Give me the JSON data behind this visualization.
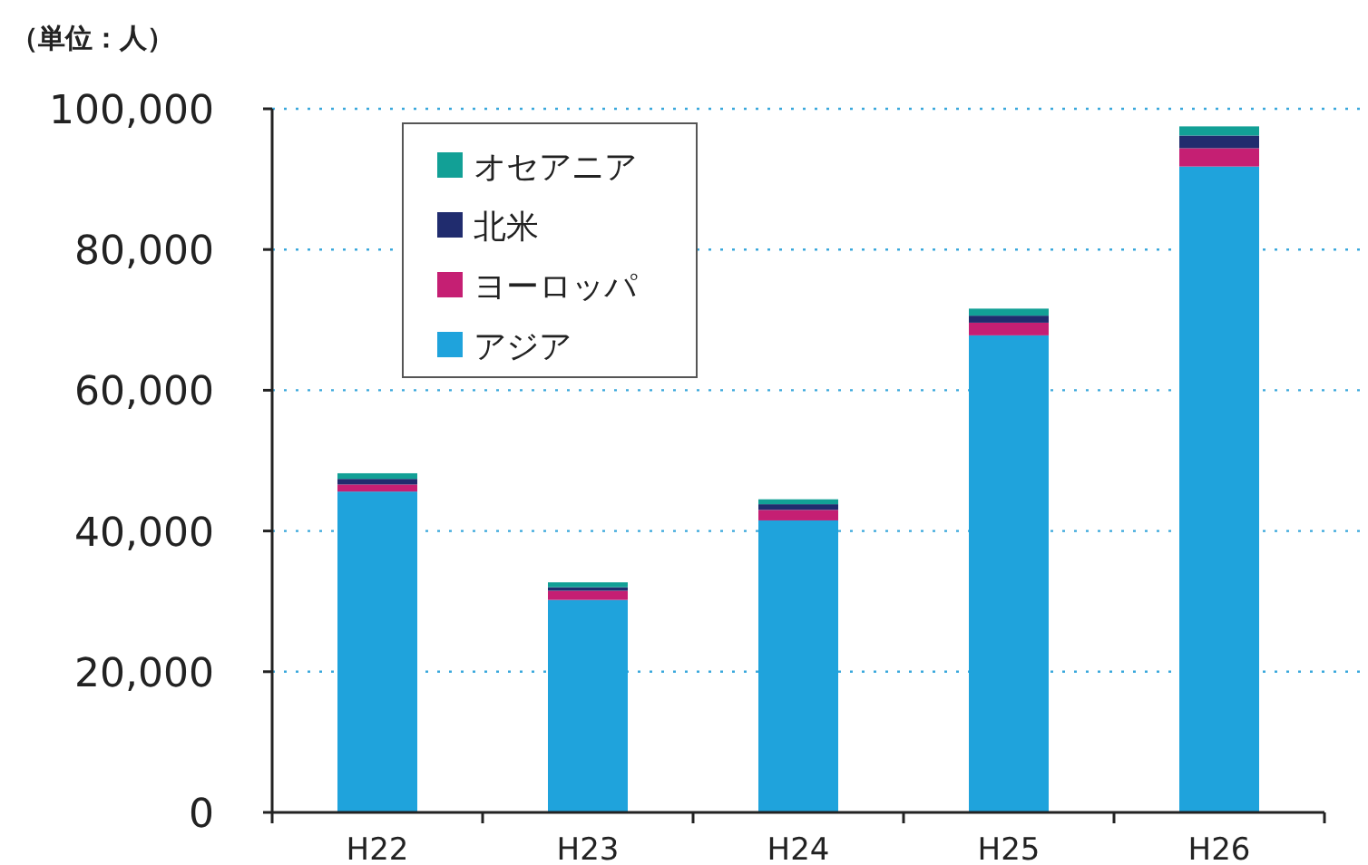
{
  "chart_data": {
    "type": "bar",
    "stacked": true,
    "ylabel": "（単位：人）",
    "categories": [
      "H22",
      "H23",
      "H24",
      "H25",
      "H26"
    ],
    "series": [
      {
        "name": "アジア",
        "color": "#1fa3dc",
        "values": [
          45600,
          30200,
          41500,
          67800,
          91800
        ]
      },
      {
        "name": "ヨーロッパ",
        "color": "#c51f73",
        "values": [
          1000,
          1300,
          1500,
          1800,
          2600
        ]
      },
      {
        "name": "北米",
        "color": "#202c6e",
        "values": [
          800,
          500,
          800,
          1000,
          1800
        ]
      },
      {
        "name": "オセアニア",
        "color": "#12a096",
        "values": [
          800,
          700,
          700,
          1000,
          1300
        ]
      }
    ],
    "ylim": [
      0,
      100000
    ],
    "yticks": [
      {
        "value": 0,
        "label": "0"
      },
      {
        "value": 20000,
        "label": "20,000"
      },
      {
        "value": 40000,
        "label": "40,000"
      },
      {
        "value": 60000,
        "label": "60,000"
      },
      {
        "value": 80000,
        "label": "80,000"
      },
      {
        "value": 100000,
        "label": "100,000"
      }
    ],
    "grid": "y",
    "legend": "top left"
  }
}
